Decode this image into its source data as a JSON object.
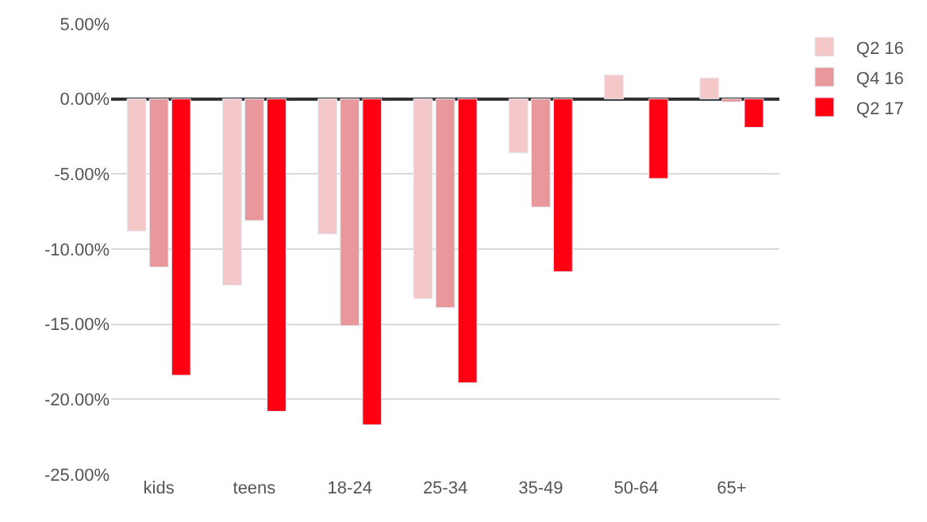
{
  "chart_data": {
    "type": "bar",
    "categories": [
      "kids",
      "teens",
      "18-24",
      "25-34",
      "35-49",
      "50-64",
      "65+"
    ],
    "series": [
      {
        "name": "Q2 16",
        "color": "#f4c7c9",
        "values": [
          -8.8,
          -12.4,
          -9.0,
          -13.3,
          -3.6,
          1.6,
          1.4
        ]
      },
      {
        "name": "Q4 16",
        "color": "#e8989b",
        "values": [
          -11.2,
          -8.1,
          -15.1,
          -13.9,
          -7.2,
          null,
          -0.2
        ]
      },
      {
        "name": "Q2 17",
        "color": "#ff0013",
        "values": [
          -18.4,
          -20.8,
          -21.7,
          -18.9,
          -11.5,
          -5.3,
          -1.9
        ]
      }
    ],
    "ylim": [
      -25,
      5
    ],
    "yticks": [
      {
        "value": 5,
        "label": "5.00%"
      },
      {
        "value": 0,
        "label": "0.00%"
      },
      {
        "value": -5,
        "label": "-5.00%"
      },
      {
        "value": -10,
        "label": "-10.00%"
      },
      {
        "value": -15,
        "label": "-15.00%"
      },
      {
        "value": -20,
        "label": "-20.00%"
      },
      {
        "value": -25,
        "label": "-25.00%"
      }
    ],
    "grid": "y",
    "legend": "top right"
  }
}
